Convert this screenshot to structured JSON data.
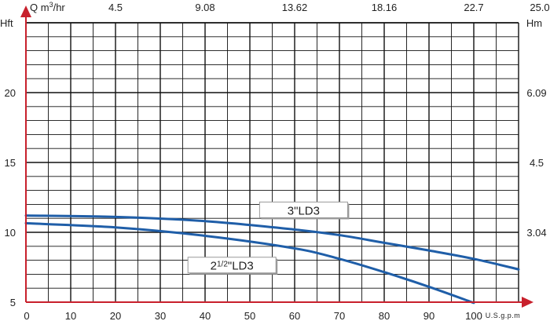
{
  "chart_data": {
    "type": "line",
    "title": "",
    "x_axis": {
      "label": "U.S.g.p.m",
      "range": [
        0,
        110
      ],
      "ticks": [
        0,
        10,
        20,
        30,
        40,
        50,
        60,
        70,
        80,
        90,
        100
      ],
      "grid_step": 5
    },
    "top_axis": {
      "label": "Q m³/hr",
      "label_prefix": "Q m",
      "label_sup": "3",
      "label_suffix": "/hr",
      "ticks": [
        {
          "gpm": 20,
          "label": "4.5"
        },
        {
          "gpm": 40,
          "label": "9.08"
        },
        {
          "gpm": 60,
          "label": "13.62"
        },
        {
          "gpm": 80,
          "label": "18.16"
        },
        {
          "gpm": 100,
          "label": "22.7"
        },
        {
          "gpm": 110,
          "label": "25.0"
        }
      ]
    },
    "y_axis": {
      "label": "Hft",
      "range": [
        5,
        25
      ],
      "ticks": [
        5,
        10,
        15,
        20
      ],
      "grid_step": 1
    },
    "right_axis": {
      "label": "Hm",
      "ticks": [
        {
          "hft": 10,
          "label": "3.04"
        },
        {
          "hft": 15,
          "label": "4.5"
        },
        {
          "hft": 20,
          "label": "6.09"
        }
      ]
    },
    "grid": true,
    "series": [
      {
        "name": "3\"LD3",
        "color": "#1f5ea8",
        "points": [
          [
            0,
            11.2
          ],
          [
            20,
            11.1
          ],
          [
            40,
            10.8
          ],
          [
            60,
            10.2
          ],
          [
            70,
            9.8
          ],
          [
            80,
            9.25
          ],
          [
            90,
            8.7
          ],
          [
            100,
            8.1
          ],
          [
            110,
            7.35
          ]
        ]
      },
      {
        "name": "2 1/2\"LD3",
        "color": "#1f5ea8",
        "points": [
          [
            0,
            10.65
          ],
          [
            20,
            10.35
          ],
          [
            40,
            9.75
          ],
          [
            60,
            8.85
          ],
          [
            70,
            8.1
          ],
          [
            80,
            7.15
          ],
          [
            90,
            6.1
          ],
          [
            100,
            4.95
          ]
        ]
      }
    ],
    "annotations": [
      {
        "series": 0,
        "text": "3\"LD3",
        "at_x": 62,
        "at_y": 11.55
      },
      {
        "series": 1,
        "prefix": "2",
        "fraction": "1/2",
        "suffix": "\"LD3",
        "at_x": 46,
        "at_y": 7.6
      }
    ]
  },
  "colors": {
    "axis": "#c8202c",
    "grid": "#111111",
    "curve": "#1f5ea8"
  }
}
